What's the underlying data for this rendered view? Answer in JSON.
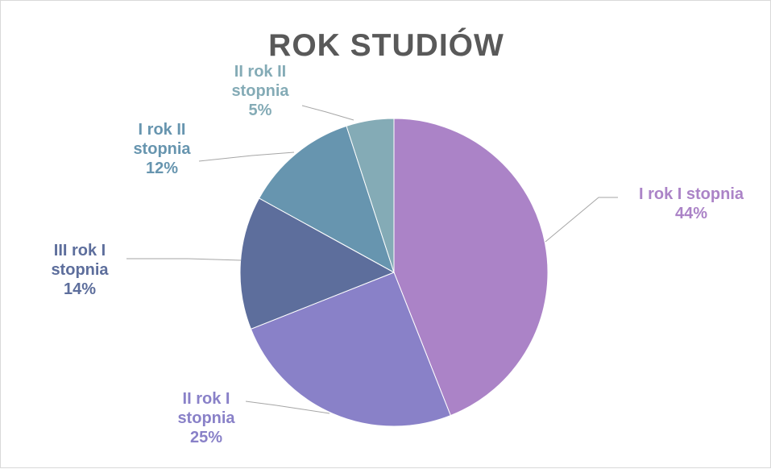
{
  "chart_data": {
    "type": "pie",
    "title": "ROK STUDIÓW",
    "slices": [
      {
        "label_lines": [
          "I rok I stopnia"
        ],
        "percent_label": "44%",
        "value": 44,
        "color": "#ab83c7"
      },
      {
        "label_lines": [
          "II rok I",
          "stopnia"
        ],
        "percent_label": "25%",
        "value": 25,
        "color": "#8981c8"
      },
      {
        "label_lines": [
          "III rok I",
          "stopnia"
        ],
        "percent_label": "14%",
        "value": 14,
        "color": "#5d6e9c"
      },
      {
        "label_lines": [
          "I rok II",
          "stopnia"
        ],
        "percent_label": "12%",
        "value": 12,
        "color": "#6795af"
      },
      {
        "label_lines": [
          "II rok II",
          "stopnia"
        ],
        "percent_label": "5%",
        "value": 5,
        "color": "#84abb6"
      }
    ],
    "label_colors": [
      "#ab83c7",
      "#8981c8",
      "#5d6e9c",
      "#6795af",
      "#84abb6"
    ],
    "leader_line_color": "#a6a6a6",
    "legend": "none"
  }
}
